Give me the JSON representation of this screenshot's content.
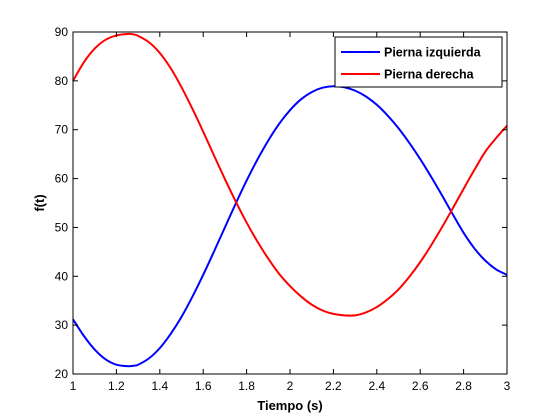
{
  "chart_data": {
    "type": "line",
    "xlabel": "Tiempo (s)",
    "ylabel": "f(t)",
    "xlim": [
      1,
      3
    ],
    "ylim": [
      20,
      90
    ],
    "xticks": [
      1,
      1.2,
      1.4,
      1.6,
      1.8,
      2,
      2.2,
      2.4,
      2.6,
      2.8,
      3
    ],
    "yticks": [
      20,
      30,
      40,
      50,
      60,
      70,
      80,
      90
    ],
    "xtick_labels": [
      "1",
      "1.2",
      "1.4",
      "1.6",
      "1.8",
      "2",
      "2.2",
      "2.4",
      "2.6",
      "2.8",
      "3"
    ],
    "ytick_labels": [
      "20",
      "30",
      "40",
      "50",
      "60",
      "70",
      "80",
      "90"
    ],
    "grid": false,
    "legend_position": "top-right",
    "series": [
      {
        "name": "Pierna izquierda",
        "color": "#0000ff",
        "x": [
          1.0,
          1.05,
          1.1,
          1.15,
          1.2,
          1.25,
          1.28,
          1.3,
          1.35,
          1.4,
          1.45,
          1.5,
          1.55,
          1.6,
          1.65,
          1.7,
          1.75,
          1.8,
          1.85,
          1.9,
          1.95,
          2.0,
          2.05,
          2.1,
          2.15,
          2.2,
          2.25,
          2.3,
          2.35,
          2.4,
          2.45,
          2.5,
          2.55,
          2.6,
          2.65,
          2.7,
          2.75,
          2.8,
          2.85,
          2.9,
          2.95,
          3.0
        ],
        "y": [
          31.2,
          27.8,
          25.0,
          23.0,
          21.9,
          21.6,
          21.7,
          21.9,
          23.2,
          25.3,
          28.2,
          31.7,
          35.8,
          40.3,
          45.1,
          50.0,
          54.9,
          59.6,
          63.9,
          67.8,
          71.2,
          74.0,
          76.2,
          77.7,
          78.6,
          78.9,
          78.7,
          78.0,
          76.8,
          75.1,
          72.9,
          70.3,
          67.3,
          64.0,
          60.4,
          56.6,
          52.7,
          48.9,
          45.7,
          43.2,
          41.4,
          40.3
        ]
      },
      {
        "name": "Pierna derecha",
        "color": "#ff0000",
        "x": [
          1.0,
          1.05,
          1.1,
          1.15,
          1.2,
          1.25,
          1.28,
          1.3,
          1.35,
          1.4,
          1.45,
          1.5,
          1.55,
          1.6,
          1.65,
          1.7,
          1.75,
          1.8,
          1.85,
          1.9,
          1.95,
          2.0,
          2.05,
          2.1,
          2.15,
          2.2,
          2.25,
          2.3,
          2.35,
          2.4,
          2.45,
          2.5,
          2.55,
          2.6,
          2.65,
          2.7,
          2.75,
          2.8,
          2.85,
          2.9,
          2.95,
          3.0
        ],
        "y": [
          80.0,
          83.8,
          86.6,
          88.4,
          89.3,
          89.6,
          89.5,
          89.2,
          87.9,
          85.7,
          82.6,
          78.7,
          74.3,
          69.6,
          64.7,
          59.9,
          55.3,
          51.0,
          47.1,
          43.6,
          40.5,
          38.0,
          35.9,
          34.2,
          33.0,
          32.3,
          32.0,
          32.0,
          32.6,
          33.7,
          35.3,
          37.3,
          39.9,
          42.9,
          46.3,
          50.0,
          53.9,
          57.9,
          61.8,
          65.5,
          68.3,
          70.8
        ]
      }
    ]
  }
}
